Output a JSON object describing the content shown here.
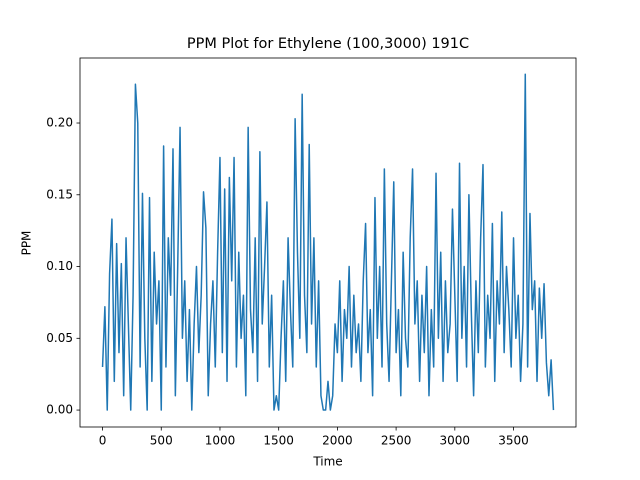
{
  "chart_data": {
    "type": "line",
    "title": "PPM Plot for Ethylene (100,3000) 191C",
    "x_label": "Time",
    "y_label": "PPM",
    "x": [
      0,
      20,
      40,
      60,
      80,
      100,
      120,
      140,
      160,
      180,
      200,
      220,
      240,
      260,
      280,
      300,
      320,
      340,
      360,
      380,
      400,
      420,
      440,
      460,
      480,
      500,
      520,
      540,
      560,
      580,
      600,
      620,
      640,
      660,
      680,
      700,
      720,
      740,
      760,
      780,
      800,
      820,
      840,
      860,
      880,
      900,
      920,
      940,
      960,
      980,
      1000,
      1020,
      1040,
      1060,
      1080,
      1100,
      1120,
      1140,
      1160,
      1180,
      1200,
      1220,
      1240,
      1260,
      1280,
      1300,
      1320,
      1340,
      1360,
      1380,
      1400,
      1420,
      1440,
      1460,
      1480,
      1500,
      1520,
      1540,
      1560,
      1580,
      1600,
      1620,
      1640,
      1660,
      1680,
      1700,
      1720,
      1740,
      1760,
      1780,
      1800,
      1820,
      1840,
      1860,
      1880,
      1900,
      1920,
      1940,
      1960,
      1980,
      2000,
      2020,
      2040,
      2060,
      2080,
      2100,
      2120,
      2140,
      2160,
      2180,
      2200,
      2220,
      2240,
      2260,
      2280,
      2300,
      2320,
      2340,
      2360,
      2380,
      2400,
      2420,
      2440,
      2460,
      2480,
      2500,
      2520,
      2540,
      2560,
      2580,
      2600,
      2620,
      2640,
      2660,
      2680,
      2700,
      2720,
      2740,
      2760,
      2780,
      2800,
      2820,
      2840,
      2860,
      2880,
      2900,
      2920,
      2940,
      2960,
      2980,
      3000,
      3020,
      3040,
      3060,
      3080,
      3100,
      3120,
      3140,
      3160,
      3180,
      3200,
      3220,
      3240,
      3260,
      3280,
      3300,
      3320,
      3340,
      3360,
      3380,
      3400,
      3420,
      3440,
      3460,
      3480,
      3500,
      3520,
      3540,
      3560,
      3580,
      3600,
      3620,
      3640,
      3660,
      3680,
      3700,
      3720,
      3740,
      3760,
      3780,
      3800,
      3820,
      3840
    ],
    "series": [
      {
        "color": "#1f77b4",
        "values": [
          0.03,
          0.072,
          0,
          0.095,
          0.133,
          0.02,
          0.116,
          0.04,
          0.102,
          0.01,
          0.12,
          0.06,
          0,
          0.08,
          0.227,
          0.2,
          0.03,
          0.151,
          0.05,
          0,
          0.148,
          0.02,
          0.11,
          0.06,
          0.09,
          0,
          0.184,
          0.03,
          0.12,
          0.08,
          0.182,
          0.01,
          0.1,
          0.197,
          0.05,
          0.09,
          0.02,
          0.07,
          0,
          0.06,
          0.1,
          0.04,
          0.08,
          0.152,
          0.127,
          0.01,
          0.06,
          0.09,
          0.03,
          0.11,
          0.176,
          0.04,
          0.154,
          0.02,
          0.162,
          0.09,
          0.176,
          0.03,
          0.11,
          0.05,
          0.08,
          0.01,
          0.197,
          0.07,
          0.04,
          0.12,
          0.02,
          0.18,
          0.06,
          0.1,
          0.145,
          0.03,
          0.08,
          0,
          0.01,
          0,
          0.05,
          0.09,
          0.02,
          0.12,
          0.07,
          0.03,
          0.203,
          0.11,
          0.05,
          0.22,
          0.08,
          0.04,
          0.185,
          0.06,
          0.12,
          0.03,
          0.09,
          0.01,
          0,
          0,
          0.02,
          0,
          0.01,
          0.06,
          0.04,
          0.09,
          0.02,
          0.07,
          0.05,
          0.1,
          0.03,
          0.08,
          0.04,
          0.06,
          0.02,
          0.09,
          0.13,
          0.04,
          0.07,
          0.01,
          0.148,
          0.05,
          0.1,
          0.03,
          0.168,
          0.06,
          0.02,
          0.09,
          0.159,
          0.04,
          0.07,
          0.01,
          0.11,
          0.05,
          0.03,
          0.12,
          0.168,
          0.06,
          0.09,
          0.02,
          0.08,
          0.04,
          0.1,
          0.01,
          0.07,
          0.03,
          0.165,
          0.05,
          0.11,
          0.02,
          0.09,
          0.04,
          0.06,
          0.14,
          0.08,
          0.02,
          0.172,
          0.05,
          0.1,
          0.03,
          0.15,
          0.07,
          0.01,
          0.09,
          0.04,
          0.12,
          0.171,
          0.03,
          0.08,
          0.05,
          0.13,
          0.02,
          0.09,
          0.06,
          0.138,
          0.04,
          0.1,
          0.07,
          0.03,
          0.12,
          0.05,
          0.08,
          0.02,
          0.06,
          0.234,
          0.03,
          0.137,
          0.07,
          0.09,
          0.02,
          0.085,
          0.05,
          0.088,
          0.033,
          0.01,
          0.035,
          0
        ]
      }
    ],
    "xlim": [
      -192,
      4032
    ],
    "ylim": [
      -0.0118,
      0.2453
    ],
    "xticks": [
      0,
      500,
      1000,
      1500,
      2000,
      2500,
      3000,
      3500
    ],
    "yticks": [
      {
        "value": 0,
        "label": "0.00"
      },
      0.05,
      {
        "value": 0.1,
        "label": "0.10"
      },
      0.15,
      {
        "value": 0.2,
        "label": "0.20"
      }
    ]
  }
}
